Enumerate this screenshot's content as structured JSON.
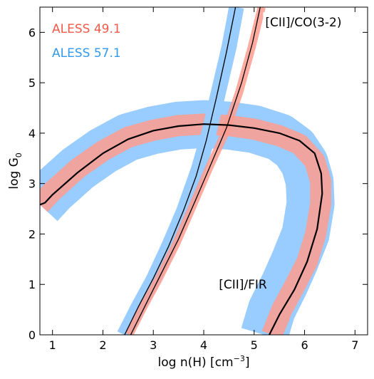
{
  "chart_data": {
    "type": "area",
    "xlabel_main": "log n(H) [cm",
    "xlabel_sup": "−3",
    "xlabel_end": "]",
    "ylabel_main": "log G",
    "ylabel_sub": "0",
    "xlim": [
      0.75,
      7.25
    ],
    "ylim": [
      0,
      6.5
    ],
    "xticks": [
      1,
      2,
      3,
      4,
      5,
      6,
      7
    ],
    "yticks": [
      0,
      1,
      2,
      3,
      4,
      5,
      6
    ],
    "grid": false,
    "legend_position": "top-left",
    "legend": [
      {
        "name": "ALESS 49.1",
        "color": "#f05a4a"
      },
      {
        "name": "ALESS 57.1",
        "color": "#3399ee"
      }
    ],
    "annotations": [
      {
        "text": "[CII]/CO(3-2)",
        "x": 5.22,
        "y": 6.2
      },
      {
        "text": "[CII]/FIR",
        "x": 4.3,
        "y": 1.0
      }
    ],
    "colors": {
      "blue_band": "#99ccff",
      "red_band": "#ff9c8e",
      "overlap": "#b08cb8",
      "curve": "#000000"
    },
    "series": [
      {
        "key": "fir_blue",
        "band": "ALESS 57.1",
        "center": [
          [
            0.75,
            2.58
          ],
          [
            1.0,
            2.85
          ],
          [
            1.5,
            3.3
          ],
          [
            2.0,
            3.65
          ],
          [
            2.5,
            3.92
          ],
          [
            3.0,
            4.06
          ],
          [
            3.5,
            4.15
          ],
          [
            4.0,
            4.18
          ],
          [
            4.5,
            4.15
          ],
          [
            5.0,
            4.08
          ],
          [
            5.5,
            3.92
          ],
          [
            5.8,
            3.7
          ],
          [
            6.0,
            3.4
          ],
          [
            6.1,
            3.05
          ],
          [
            6.12,
            2.6
          ],
          [
            6.02,
            2.0
          ],
          [
            5.8,
            1.45
          ],
          [
            5.6,
            1.0
          ],
          [
            5.35,
            0.5
          ],
          [
            5.2,
            0.0
          ]
        ],
        "width": 0.95
      },
      {
        "key": "fir_red",
        "band": "ALESS 49.1",
        "center": [
          [
            0.75,
            2.58
          ],
          [
            1.0,
            2.85
          ],
          [
            1.5,
            3.3
          ],
          [
            2.0,
            3.65
          ],
          [
            2.5,
            3.92
          ],
          [
            3.0,
            4.06
          ],
          [
            3.5,
            4.15
          ],
          [
            4.0,
            4.18
          ],
          [
            4.5,
            4.15
          ],
          [
            5.0,
            4.08
          ],
          [
            5.5,
            3.95
          ],
          [
            5.9,
            3.78
          ],
          [
            6.2,
            3.45
          ],
          [
            6.32,
            3.05
          ],
          [
            6.32,
            2.6
          ],
          [
            6.22,
            2.0
          ],
          [
            6.05,
            1.45
          ],
          [
            5.82,
            1.0
          ],
          [
            5.55,
            0.5
          ],
          [
            5.35,
            0.0
          ]
        ],
        "width": 0.42
      },
      {
        "key": "co_blue",
        "band": "ALESS 57.1",
        "center": [
          [
            2.42,
            0.0
          ],
          [
            2.7,
            0.55
          ],
          [
            3.0,
            1.1
          ],
          [
            3.3,
            1.75
          ],
          [
            3.6,
            2.45
          ],
          [
            3.9,
            3.3
          ],
          [
            4.1,
            4.0
          ],
          [
            4.3,
            4.85
          ],
          [
            4.5,
            5.7
          ],
          [
            4.65,
            6.5
          ]
        ],
        "width": 0.3
      },
      {
        "key": "co_red",
        "band": "ALESS 49.1",
        "center": [
          [
            2.52,
            0.0
          ],
          [
            2.8,
            0.55
          ],
          [
            3.1,
            1.1
          ],
          [
            3.45,
            1.8
          ],
          [
            3.8,
            2.6
          ],
          [
            4.1,
            3.3
          ],
          [
            4.4,
            3.95
          ],
          [
            4.7,
            4.8
          ],
          [
            4.95,
            5.7
          ],
          [
            5.15,
            6.5
          ]
        ],
        "width": 0.16
      }
    ],
    "curves": [
      {
        "key": "fir_thick",
        "stroke_width": 2.2,
        "points": [
          [
            0.75,
            2.58
          ],
          [
            0.85,
            2.62
          ],
          [
            1.0,
            2.78
          ],
          [
            1.5,
            3.22
          ],
          [
            2.0,
            3.6
          ],
          [
            2.5,
            3.88
          ],
          [
            3.0,
            4.05
          ],
          [
            3.5,
            4.14
          ],
          [
            4.0,
            4.18
          ],
          [
            4.5,
            4.16
          ],
          [
            5.0,
            4.1
          ],
          [
            5.5,
            4.0
          ],
          [
            5.9,
            3.85
          ],
          [
            6.2,
            3.6
          ],
          [
            6.33,
            3.2
          ],
          [
            6.35,
            2.8
          ],
          [
            6.25,
            2.1
          ],
          [
            6.05,
            1.45
          ],
          [
            5.8,
            0.9
          ],
          [
            5.5,
            0.4
          ],
          [
            5.3,
            0.0
          ]
        ]
      },
      {
        "key": "co_blue_line",
        "stroke_width": 1.3,
        "points": [
          [
            2.43,
            0.0
          ],
          [
            2.7,
            0.55
          ],
          [
            3.0,
            1.12
          ],
          [
            3.3,
            1.75
          ],
          [
            3.6,
            2.47
          ],
          [
            3.85,
            3.15
          ],
          [
            4.05,
            3.85
          ],
          [
            4.25,
            4.7
          ],
          [
            4.45,
            5.6
          ],
          [
            4.63,
            6.5
          ]
        ]
      },
      {
        "key": "co_red_line",
        "stroke_width": 1.3,
        "points": [
          [
            2.55,
            0.0
          ],
          [
            2.85,
            0.6
          ],
          [
            3.15,
            1.2
          ],
          [
            3.5,
            1.9
          ],
          [
            3.85,
            2.7
          ],
          [
            4.15,
            3.4
          ],
          [
            4.45,
            4.1
          ],
          [
            4.75,
            5.0
          ],
          [
            4.97,
            5.8
          ],
          [
            5.12,
            6.5
          ]
        ]
      }
    ]
  }
}
